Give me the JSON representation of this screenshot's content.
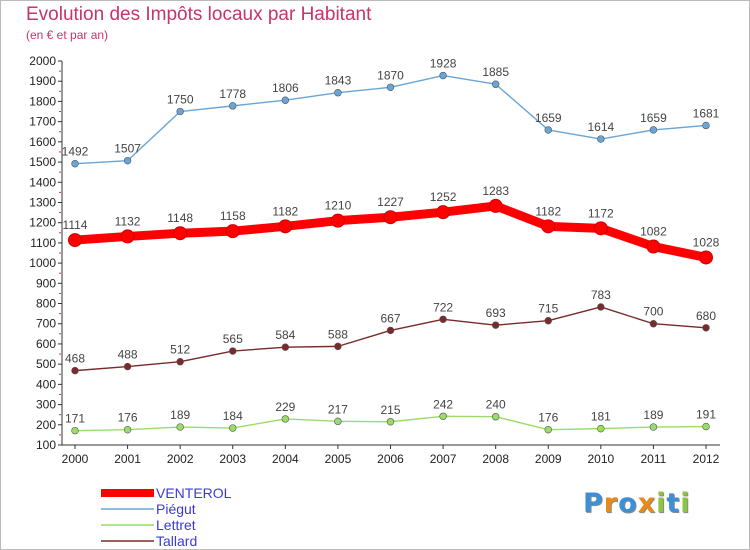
{
  "header": {
    "title": "Evolution des Impôts locaux par Habitant",
    "subtitle": "(en € et par an)"
  },
  "chart_data": {
    "type": "line",
    "title": "Evolution des Impôts locaux par Habitant",
    "subtitle": "(en € et par an)",
    "xlabel": "",
    "ylabel": "",
    "x": [
      2000,
      2001,
      2002,
      2003,
      2004,
      2005,
      2006,
      2007,
      2008,
      2009,
      2010,
      2011,
      2012
    ],
    "ylim": [
      100,
      2000
    ],
    "ytick_step": 100,
    "grid": false,
    "legend_position": "bottom-left",
    "series": [
      {
        "name": "VENTEROL",
        "color": "#ff0000",
        "emphasis": true,
        "values": [
          1114,
          1132,
          1148,
          1158,
          1182,
          1210,
          1227,
          1252,
          1283,
          1182,
          1172,
          1082,
          1028
        ]
      },
      {
        "name": "Piégut",
        "color": "#6aa5d7",
        "values": [
          1492,
          1507,
          1750,
          1778,
          1806,
          1843,
          1870,
          1928,
          1885,
          1659,
          1614,
          1659,
          1681
        ]
      },
      {
        "name": "Lettret",
        "color": "#99dd66",
        "values": [
          171,
          176,
          189,
          184,
          229,
          217,
          215,
          242,
          240,
          176,
          181,
          189,
          191
        ]
      },
      {
        "name": "Tallard",
        "color": "#7a2a2a",
        "values": [
          468,
          488,
          512,
          565,
          584,
          588,
          667,
          722,
          693,
          715,
          783,
          700,
          680
        ]
      }
    ]
  },
  "logo": {
    "letters": [
      {
        "ch": "P",
        "color": "#3d8fd8"
      },
      {
        "ch": "r",
        "color": "#e88a1a"
      },
      {
        "ch": "o",
        "color": "#3d8fd8"
      },
      {
        "ch": "x",
        "color": "#e88a1a"
      },
      {
        "ch": "i",
        "color": "#8cc63f"
      },
      {
        "ch": "t",
        "color": "#3d8fd8"
      },
      {
        "ch": "i",
        "color": "#8cc63f"
      }
    ]
  }
}
